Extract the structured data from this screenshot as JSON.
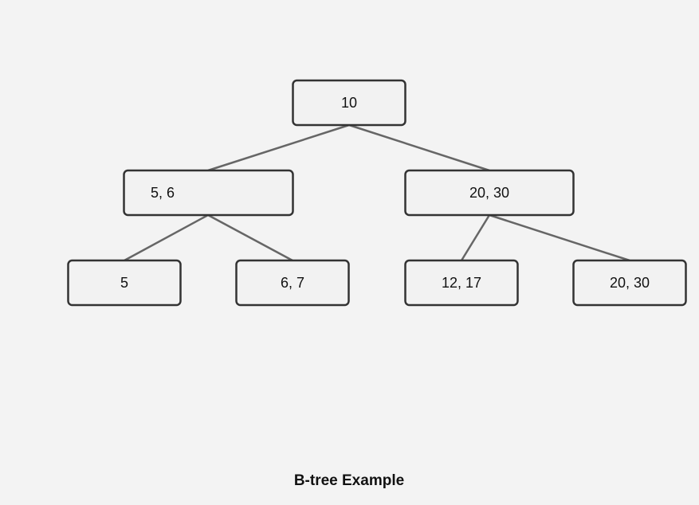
{
  "diagram": {
    "root": {
      "label": "10"
    },
    "level1": [
      {
        "label": "5, 6"
      },
      {
        "label": "20, 30"
      }
    ],
    "level2": [
      {
        "label": "5"
      },
      {
        "label": "6, 7"
      },
      {
        "label": "12, 17"
      },
      {
        "label": "20, 30"
      }
    ],
    "caption": "B-tree Example"
  }
}
